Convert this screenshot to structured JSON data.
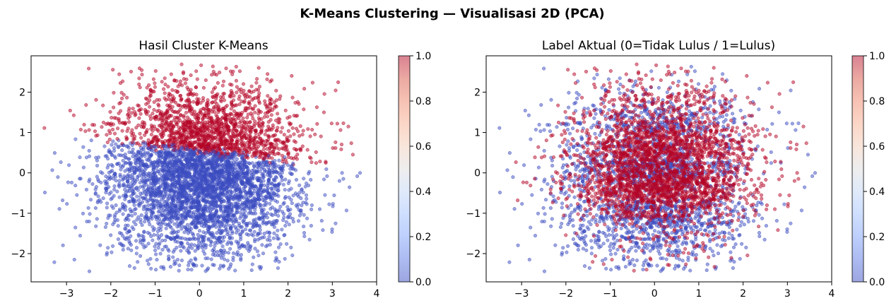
{
  "figure_title": "K-Means Clustering — Visualisasi 2D (PCA)",
  "chart_data": [
    {
      "type": "scatter",
      "title": "Hasil Cluster K-Means",
      "xlabel": "",
      "ylabel": "",
      "xlim": [
        -3.8,
        4.0
      ],
      "ylim": [
        -2.7,
        2.9
      ],
      "xticks": [
        "−3",
        "−2",
        "−1",
        "0",
        "1",
        "2",
        "3",
        "4"
      ],
      "yticks": [
        "−2",
        "−1",
        "0",
        "1",
        "2"
      ],
      "colormap": "coolwarm",
      "point_alpha": 0.5,
      "color_rule": "value 1 where y > 0.55 - 0.12*x else 0 (estimated)",
      "value_range": [
        0,
        1
      ],
      "approx_points": 5000,
      "distribution": {
        "x_mean": 0.1,
        "x_std": 1.05,
        "y_mean": 0.0,
        "y_std": 1.05
      },
      "colorbar": {
        "ticks": [
          "0.0",
          "0.2",
          "0.4",
          "0.6",
          "0.8",
          "1.0"
        ],
        "range": [
          0.0,
          1.0
        ]
      }
    },
    {
      "type": "scatter",
      "title": "Label Aktual (0=Tidak Lulus / 1=Lulus)",
      "xlabel": "",
      "ylabel": "",
      "xlim": [
        -3.8,
        4.0
      ],
      "ylim": [
        -2.7,
        2.9
      ],
      "xticks": [
        "−3",
        "−2",
        "−1",
        "0",
        "1",
        "2",
        "3",
        "4"
      ],
      "yticks": [
        "−2",
        "−1",
        "0",
        "1",
        "2"
      ],
      "colormap": "coolwarm",
      "point_alpha": 0.5,
      "color_rule": "binary label, red in horizontal bands (~0.7 and ~-0.4), mixed elsewhere",
      "value_range": [
        0,
        1
      ],
      "approx_points": 5000,
      "distribution": {
        "x_mean": 0.1,
        "x_std": 1.05,
        "y_mean": 0.0,
        "y_std": 1.05
      },
      "colorbar": {
        "ticks": [
          "0.0",
          "0.2",
          "0.4",
          "0.6",
          "0.8",
          "1.0"
        ],
        "range": [
          0.0,
          1.0
        ]
      }
    }
  ],
  "colors": {
    "low": "#3b4cc0",
    "mid": "#dddddd",
    "high": "#b40426"
  }
}
